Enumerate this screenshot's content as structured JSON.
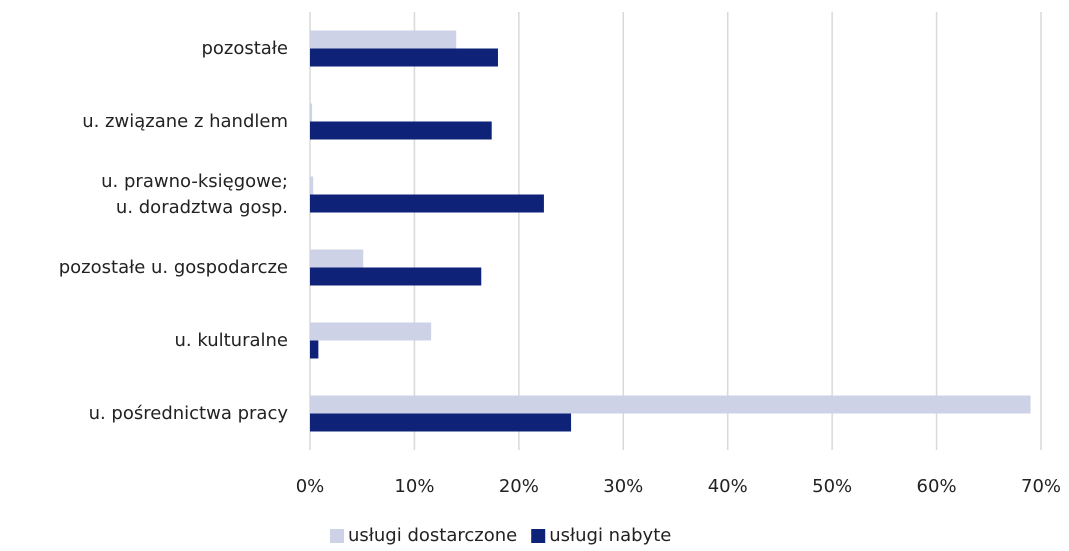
{
  "chart_data": {
    "type": "hbar",
    "categories": [
      "pozostałe",
      "u. związane z handlem",
      "u. prawno-księgowe;\nu. doradztwa gosp.",
      "pozostałe u. gospodarcze",
      "u. kulturalne",
      "u. pośrednictwa pracy"
    ],
    "series": [
      {
        "name": "usługi dostarczone",
        "color": "#cdd2e6",
        "values": [
          14.0,
          0.2,
          0.3,
          5.1,
          11.6,
          69.0
        ]
      },
      {
        "name": "usługi nabyte",
        "color": "#0e2278",
        "values": [
          18.0,
          17.4,
          22.4,
          16.4,
          0.8,
          25.0
        ]
      }
    ],
    "xlim": [
      0,
      70
    ],
    "xticks": [
      {
        "value": 0,
        "label": "0%"
      },
      {
        "value": 10,
        "label": "10%"
      },
      {
        "value": 20,
        "label": "20%"
      },
      {
        "value": 30,
        "label": "30%"
      },
      {
        "value": 40,
        "label": "40%"
      },
      {
        "value": 50,
        "label": "50%"
      },
      {
        "value": 60,
        "label": "60%"
      },
      {
        "value": 70,
        "label": "70%"
      }
    ],
    "grid": true,
    "legend": "bottom"
  }
}
